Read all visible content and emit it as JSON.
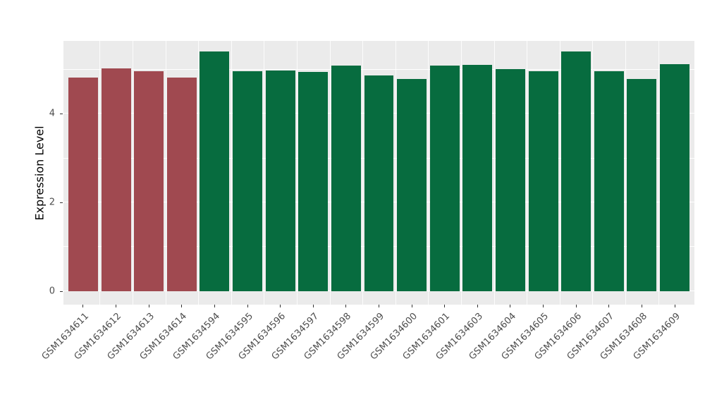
{
  "chart_data": {
    "type": "bar",
    "title": "",
    "xlabel": "",
    "ylabel": "Expression Level",
    "categories": [
      "GSM1634611",
      "GSM1634612",
      "GSM1634613",
      "GSM1634614",
      "GSM1634594",
      "GSM1634595",
      "GSM1634596",
      "GSM1634597",
      "GSM1634598",
      "GSM1634599",
      "GSM1634600",
      "GSM1634601",
      "GSM1634603",
      "GSM1634604",
      "GSM1634605",
      "GSM1634606",
      "GSM1634607",
      "GSM1634608",
      "GSM1634609"
    ],
    "values": [
      4.81,
      5.02,
      4.95,
      4.81,
      5.41,
      4.95,
      4.97,
      4.94,
      5.08,
      4.86,
      4.78,
      5.08,
      5.1,
      5.0,
      4.95,
      5.41,
      4.95,
      4.78,
      5.11
    ],
    "bar_colors": [
      "#A04950",
      "#A04950",
      "#A04950",
      "#A04950",
      "#076C3F",
      "#076C3F",
      "#076C3F",
      "#076C3F",
      "#076C3F",
      "#076C3F",
      "#076C3F",
      "#076C3F",
      "#076C3F",
      "#076C3F",
      "#076C3F",
      "#076C3F",
      "#076C3F",
      "#076C3F",
      "#076C3F"
    ],
    "yticks": [
      0,
      2,
      4
    ],
    "y_minor_ticks": [
      1,
      3,
      5
    ],
    "ylim": [
      0,
      5.6
    ],
    "grid": true,
    "legend": false,
    "panel_background": "#EBEBEB",
    "grid_color": "#FFFFFF",
    "tick_text_color": "#4D4D4D"
  }
}
